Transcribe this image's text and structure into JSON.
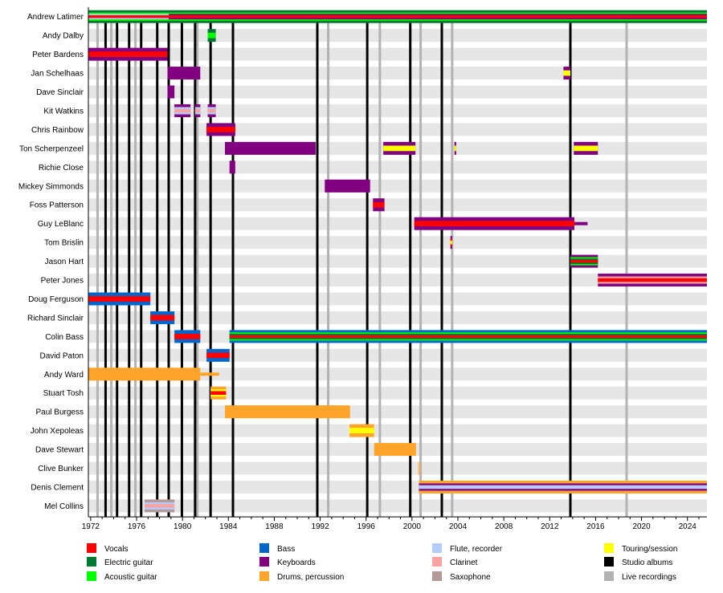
{
  "chart_data": {
    "type": "timeline",
    "xlim": [
      1971.8,
      2025.7
    ],
    "x_ticks": [
      1972,
      1976,
      1980,
      1984,
      1988,
      1992,
      1996,
      2000,
      2004,
      2008,
      2012,
      2016,
      2020,
      2024
    ],
    "legend_position": "bottom",
    "roles": {
      "vocals": {
        "label": "Vocals",
        "color": "#ff0000"
      },
      "electric_guitar": {
        "label": "Electric guitar",
        "color": "#007a33"
      },
      "acoustic_guitar": {
        "label": "Acoustic guitar",
        "color": "#00ff00"
      },
      "bass": {
        "label": "Bass",
        "color": "#0066cc"
      },
      "keyboards": {
        "label": "Keyboards",
        "color": "#800080"
      },
      "drums": {
        "label": "Drums, percussion",
        "color": "#ffa42b"
      },
      "flute": {
        "label": "Flute, recorder",
        "color": "#b5ccff"
      },
      "clarinet": {
        "label": "Clarinet",
        "color": "#f7a3a3"
      },
      "saxophone": {
        "label": "Saxophone",
        "color": "#b39999"
      },
      "touring": {
        "label": "Touring/session",
        "color": "#ffff00"
      },
      "studio": {
        "label": "Studio albums",
        "color": "#000000"
      },
      "live": {
        "label": "Live recordings",
        "color": "#b3b3b3"
      }
    },
    "legend_order": [
      [
        "vocals",
        "electric_guitar",
        "acoustic_guitar"
      ],
      [
        "bass",
        "keyboards",
        "drums"
      ],
      [
        "flute",
        "clarinet",
        "saxophone"
      ],
      [
        "touring",
        "studio",
        "live"
      ]
    ],
    "studio_albums": [
      1973.3,
      1974.3,
      1975.35,
      1976.4,
      1977.8,
      1978.8,
      1979.95,
      1981.1,
      1982.45,
      1984.4,
      1991.75,
      1996.1,
      1999.85,
      2002.6,
      2013.8
    ],
    "live_recordings": [
      1972.6,
      1973.8,
      1975.9,
      1981.3,
      1992.7,
      1997.2,
      2000.75,
      2003.5,
      2018.7
    ],
    "members": [
      {
        "name": "Andrew Latimer",
        "spans": [
          {
            "start": 1971.8,
            "end": 1978.8,
            "roles": [
              "electric_guitar",
              "acoustic_guitar",
              "flute",
              "vocals"
            ]
          },
          {
            "start": 1978.8,
            "end": 2025.7,
            "roles": [
              "electric_guitar",
              "acoustic_guitar",
              "keyboards",
              "vocals"
            ]
          }
        ]
      },
      {
        "name": "Andy Dalby",
        "spans": [
          {
            "start": 1982.2,
            "end": 1982.9,
            "roles": [
              "electric_guitar",
              "acoustic_guitar"
            ]
          }
        ]
      },
      {
        "name": "Peter Bardens",
        "spans": [
          {
            "start": 1971.8,
            "end": 1978.7,
            "roles": [
              "keyboards",
              "vocals"
            ]
          }
        ]
      },
      {
        "name": "Jan Schelhaas",
        "spans": [
          {
            "start": 1978.7,
            "end": 1981.55,
            "roles": [
              "keyboards"
            ]
          },
          {
            "start": 2013.2,
            "end": 2013.8,
            "roles": [
              "keyboards",
              "touring"
            ]
          }
        ]
      },
      {
        "name": "Dave Sinclair",
        "spans": [
          {
            "start": 1978.7,
            "end": 1979.3,
            "roles": [
              "keyboards"
            ]
          }
        ]
      },
      {
        "name": "Kit Watkins",
        "spans": [
          {
            "start": 1979.3,
            "end": 1980.7,
            "roles": [
              "keyboards",
              "flute",
              "clarinet"
            ]
          },
          {
            "start": 1981.1,
            "end": 1981.55,
            "roles": [
              "keyboards",
              "flute",
              "clarinet"
            ]
          },
          {
            "start": 1982.2,
            "end": 1982.9,
            "roles": [
              "keyboards",
              "flute",
              "clarinet"
            ]
          }
        ]
      },
      {
        "name": "Chris Rainbow",
        "spans": [
          {
            "start": 1982.1,
            "end": 1984.6,
            "roles": [
              "keyboards",
              "vocals"
            ]
          }
        ]
      },
      {
        "name": "Ton Scherpenzeel",
        "spans": [
          {
            "start": 1983.7,
            "end": 1991.6,
            "roles": [
              "keyboards"
            ]
          },
          {
            "start": 1997.5,
            "end": 2000.3,
            "roles": [
              "keyboards",
              "touring"
            ]
          },
          {
            "start": 2003.7,
            "end": 2003.85,
            "roles": [
              "keyboards",
              "touring"
            ]
          },
          {
            "start": 2014.1,
            "end": 2016.2,
            "roles": [
              "keyboards",
              "touring"
            ]
          }
        ]
      },
      {
        "name": "Richie Close",
        "spans": [
          {
            "start": 1984.1,
            "end": 1984.6,
            "roles": [
              "keyboards"
            ]
          }
        ]
      },
      {
        "name": "Mickey Simmonds",
        "spans": [
          {
            "start": 1992.4,
            "end": 1996.35,
            "roles": [
              "keyboards"
            ]
          }
        ]
      },
      {
        "name": "Foss Patterson",
        "spans": [
          {
            "start": 1996.6,
            "end": 1997.6,
            "roles": [
              "keyboards",
              "vocals"
            ]
          }
        ]
      },
      {
        "name": "Guy LeBlanc",
        "spans": [
          {
            "start": 2000.2,
            "end": 2014.15,
            "roles": [
              "keyboards",
              "vocals"
            ]
          },
          {
            "start": 2014.15,
            "end": 2015.3,
            "roles": [
              "keyboards"
            ],
            "thin": true
          }
        ]
      },
      {
        "name": "Tom Brislin",
        "spans": [
          {
            "start": 2003.35,
            "end": 2003.5,
            "roles": [
              "keyboards",
              "vocals",
              "touring"
            ]
          }
        ]
      },
      {
        "name": "Jason Hart",
        "spans": [
          {
            "start": 2013.8,
            "end": 2016.2,
            "roles": [
              "keyboards",
              "acoustic_guitar",
              "electric_guitar",
              "vocals"
            ]
          }
        ]
      },
      {
        "name": "Peter Jones",
        "spans": [
          {
            "start": 2016.2,
            "end": 2025.7,
            "roles": [
              "keyboards",
              "clarinet",
              "vocals"
            ]
          }
        ]
      },
      {
        "name": "Doug Ferguson",
        "spans": [
          {
            "start": 1971.8,
            "end": 1977.2,
            "roles": [
              "bass",
              "vocals"
            ]
          }
        ]
      },
      {
        "name": "Richard Sinclair",
        "spans": [
          {
            "start": 1977.2,
            "end": 1979.3,
            "roles": [
              "bass",
              "vocals"
            ]
          }
        ]
      },
      {
        "name": "Colin Bass",
        "spans": [
          {
            "start": 1979.3,
            "end": 1981.55,
            "roles": [
              "bass",
              "vocals"
            ]
          },
          {
            "start": 1984.1,
            "end": 2025.7,
            "roles": [
              "bass",
              "acoustic_guitar",
              "electric_guitar",
              "vocals"
            ]
          }
        ]
      },
      {
        "name": "David Paton",
        "spans": [
          {
            "start": 1982.1,
            "end": 1984.1,
            "roles": [
              "bass",
              "vocals"
            ]
          }
        ]
      },
      {
        "name": "Andy Ward",
        "spans": [
          {
            "start": 1971.8,
            "end": 1981.55,
            "roles": [
              "drums"
            ]
          },
          {
            "start": 1981.55,
            "end": 1983.2,
            "roles": [
              "drums"
            ],
            "thin": true
          }
        ]
      },
      {
        "name": "Stuart Tosh",
        "spans": [
          {
            "start": 1982.45,
            "end": 1983.8,
            "roles": [
              "drums",
              "touring",
              "vocals"
            ]
          }
        ]
      },
      {
        "name": "Paul Burgess",
        "spans": [
          {
            "start": 1983.7,
            "end": 1994.6,
            "roles": [
              "drums"
            ]
          }
        ]
      },
      {
        "name": "John Xepoleas",
        "spans": [
          {
            "start": 1994.55,
            "end": 1996.7,
            "roles": [
              "drums",
              "touring"
            ]
          }
        ]
      },
      {
        "name": "Dave Stewart",
        "spans": [
          {
            "start": 1996.7,
            "end": 2000.35,
            "roles": [
              "drums"
            ]
          }
        ]
      },
      {
        "name": "Clive Bunker",
        "spans": [
          {
            "start": 2000.5,
            "end": 2000.75,
            "roles": [
              "drums"
            ],
            "faded": true
          }
        ]
      },
      {
        "name": "Denis Clement",
        "spans": [
          {
            "start": 2000.6,
            "end": 2025.7,
            "roles": [
              "drums",
              "keyboards",
              "flute"
            ]
          }
        ]
      },
      {
        "name": "Mel Collins",
        "spans": [
          {
            "start": 1976.7,
            "end": 1979.3,
            "roles": [
              "saxophone",
              "flute",
              "clarinet"
            ]
          }
        ]
      }
    ]
  }
}
